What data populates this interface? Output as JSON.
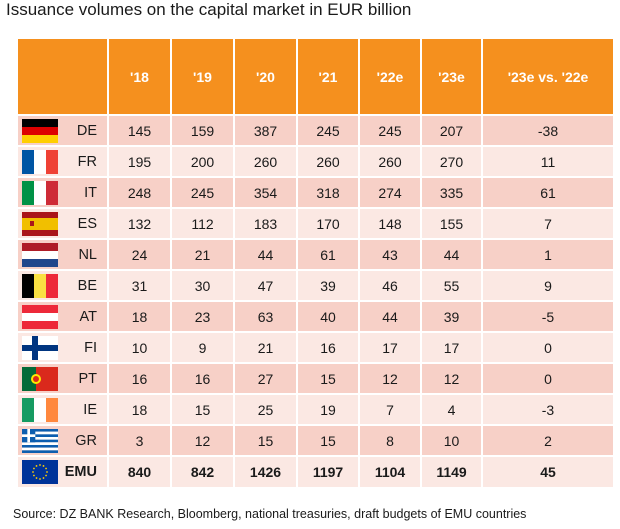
{
  "title": "Issuance volumes on the capital market in EUR billion",
  "source": "Source: DZ BANK Research, Bloomberg, national treasuries, draft budgets of EMU countries",
  "chart_data": {
    "type": "table",
    "title": "Issuance volumes on the capital market in EUR billion",
    "columns": [
      "'18",
      "'19",
      "'20",
      "'21",
      "'22e",
      "'23e",
      "'23e vs. '22e"
    ],
    "rows": [
      {
        "code": "DE",
        "flag": "germany-flag",
        "values": [
          145,
          159,
          387,
          245,
          245,
          207,
          -38
        ]
      },
      {
        "code": "FR",
        "flag": "france-flag",
        "values": [
          195,
          200,
          260,
          260,
          260,
          270,
          11
        ]
      },
      {
        "code": "IT",
        "flag": "italy-flag",
        "values": [
          248,
          245,
          354,
          318,
          274,
          335,
          61
        ]
      },
      {
        "code": "ES",
        "flag": "spain-flag",
        "values": [
          132,
          112,
          183,
          170,
          148,
          155,
          7
        ]
      },
      {
        "code": "NL",
        "flag": "netherlands-flag",
        "values": [
          24,
          21,
          44,
          61,
          43,
          44,
          1
        ]
      },
      {
        "code": "BE",
        "flag": "belgium-flag",
        "values": [
          31,
          30,
          47,
          39,
          46,
          55,
          9
        ]
      },
      {
        "code": "AT",
        "flag": "austria-flag",
        "values": [
          18,
          23,
          63,
          40,
          44,
          39,
          -5
        ]
      },
      {
        "code": "FI",
        "flag": "finland-flag",
        "values": [
          10,
          9,
          21,
          16,
          17,
          17,
          0
        ]
      },
      {
        "code": "PT",
        "flag": "portugal-flag",
        "values": [
          16,
          16,
          27,
          15,
          12,
          12,
          0
        ]
      },
      {
        "code": "IE",
        "flag": "ireland-flag",
        "values": [
          18,
          15,
          25,
          19,
          7,
          4,
          -3
        ]
      },
      {
        "code": "GR",
        "flag": "greece-flag",
        "values": [
          3,
          12,
          15,
          15,
          8,
          10,
          2
        ]
      }
    ],
    "total": {
      "code": "EMU",
      "flag": "eu-flag",
      "values": [
        840,
        842,
        1426,
        1197,
        1104,
        1149,
        45
      ]
    }
  },
  "colors": {
    "header": "#f5901e",
    "row_dark": "#f7d0c7",
    "row_light": "#fbe8e3"
  }
}
